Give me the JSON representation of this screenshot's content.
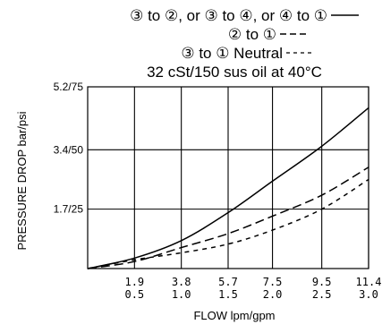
{
  "chart_data": {
    "type": "line",
    "legend": [
      {
        "label": "③ to ②, or ③ to ④, or ④ to ①",
        "style": "solid"
      },
      {
        "label": "② to ①",
        "style": "dashed"
      },
      {
        "label": "③ to ① Neutral",
        "style": "dotted-dash"
      }
    ],
    "subtitle": "32 cSt/150 sus oil at 40°C",
    "ylabel": "PRESSURE DROP bar/psi",
    "xlabel": "FLOW lpm/gpm",
    "y_ticks": [
      {
        "label": "1.7/25",
        "value": 1.7
      },
      {
        "label": "3.4/50",
        "value": 3.4
      },
      {
        "label": "5.2/75",
        "value": 5.2
      }
    ],
    "x_ticks": [
      {
        "lpm": "1.9",
        "gpm": "0.5",
        "value": 1.9
      },
      {
        "lpm": "3.8",
        "gpm": "1.0",
        "value": 3.8
      },
      {
        "lpm": "5.7",
        "gpm": "1.5",
        "value": 5.7
      },
      {
        "lpm": "7.5",
        "gpm": "2.0",
        "value": 7.5
      },
      {
        "lpm": "9.5",
        "gpm": "2.5",
        "value": 9.5
      },
      {
        "lpm": "11.4",
        "gpm": "3.0",
        "value": 11.4
      }
    ],
    "xlim": [
      0,
      11.4
    ],
    "ylim": [
      0,
      5.2
    ],
    "grid": true,
    "series": [
      {
        "dash": "solid",
        "x": [
          0,
          1.9,
          3.8,
          5.7,
          7.5,
          9.5,
          11.4
        ],
        "y": [
          0,
          0.3,
          0.8,
          1.6,
          2.5,
          3.5,
          4.6
        ]
      },
      {
        "dash": "long-dash",
        "x": [
          0,
          1.9,
          3.8,
          5.7,
          7.5,
          9.5,
          11.4
        ],
        "y": [
          0,
          0.2,
          0.6,
          1.0,
          1.5,
          2.1,
          2.9
        ]
      },
      {
        "dash": "short-dash",
        "x": [
          0,
          1.9,
          3.8,
          5.7,
          7.5,
          9.5,
          11.4
        ],
        "y": [
          0,
          0.25,
          0.45,
          0.7,
          1.1,
          1.7,
          2.55
        ]
      }
    ]
  }
}
